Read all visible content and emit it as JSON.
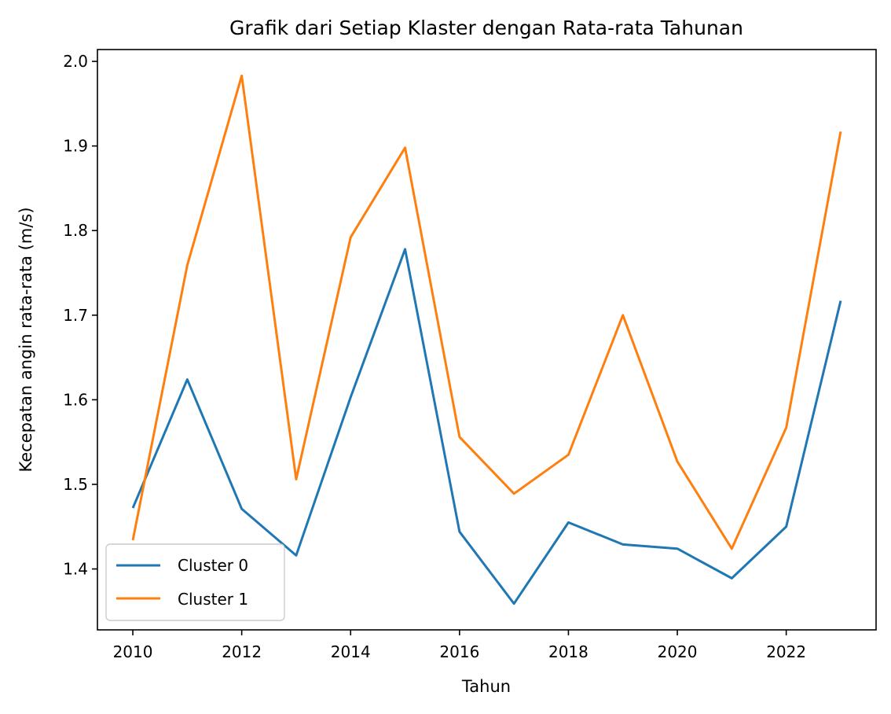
{
  "chart_data": {
    "type": "line",
    "title": "Grafik dari Setiap Klaster dengan Rata-rata Tahunan",
    "xlabel": "Tahun",
    "ylabel": "Kecepatan angin rata-rata (m/s)",
    "x": [
      2010,
      2011,
      2012,
      2013,
      2014,
      2015,
      2016,
      2017,
      2018,
      2019,
      2020,
      2021,
      2022,
      2023
    ],
    "series": [
      {
        "name": "Cluster 0",
        "color": "#1f77b4",
        "values": [
          1.472,
          1.624,
          1.471,
          1.416,
          1.603,
          1.778,
          1.444,
          1.359,
          1.455,
          1.429,
          1.424,
          1.389,
          1.45,
          1.717
        ]
      },
      {
        "name": "Cluster 1",
        "color": "#ff7f0e",
        "values": [
          1.434,
          1.759,
          1.983,
          1.506,
          1.792,
          1.898,
          1.556,
          1.489,
          1.535,
          1.7,
          1.527,
          1.424,
          1.567,
          1.917
        ]
      }
    ],
    "xlim": [
      2009.35,
      2023.65
    ],
    "ylim": [
      1.328,
      2.014
    ],
    "xticks": [
      2010,
      2012,
      2014,
      2016,
      2018,
      2020,
      2022
    ],
    "xtick_labels": [
      "2010",
      "2012",
      "2014",
      "2016",
      "2018",
      "2020",
      "2022"
    ],
    "yticks": [
      1.4,
      1.5,
      1.6,
      1.7,
      1.8,
      1.9,
      2.0
    ],
    "ytick_labels": [
      "1.4",
      "1.5",
      "1.6",
      "1.7",
      "1.8",
      "1.9",
      "2.0"
    ],
    "grid": false,
    "legend_position": "lower-left"
  }
}
